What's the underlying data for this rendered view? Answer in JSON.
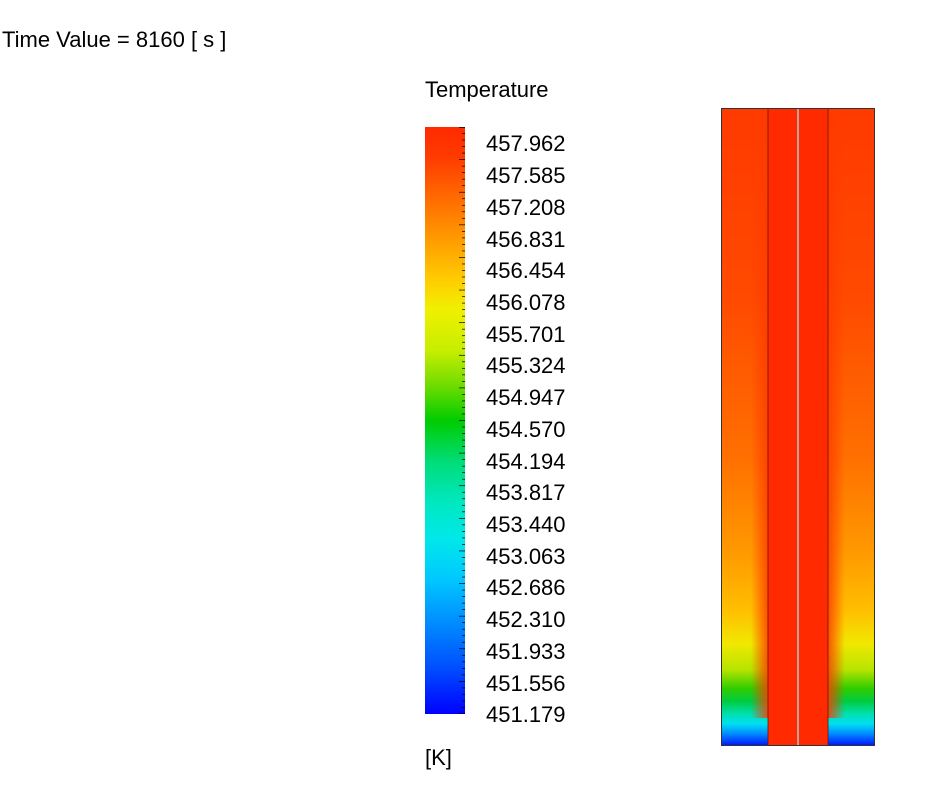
{
  "header": {
    "time_label": "Time Value = 8160 [ s ]"
  },
  "legend": {
    "title": "Temperature",
    "unit": "[K]",
    "values": [
      "457.962",
      "457.585",
      "457.208",
      "456.831",
      "456.454",
      "456.078",
      "455.701",
      "455.324",
      "454.947",
      "454.570",
      "454.194",
      "453.817",
      "453.440",
      "453.063",
      "452.686",
      "452.310",
      "451.933",
      "451.556",
      "451.179"
    ],
    "colormap": [
      "#ff0000",
      "#ff8000",
      "#ffff00",
      "#00ff00",
      "#00ffff",
      "#0000ff"
    ]
  },
  "contour": {
    "core_color": "#ff2a00",
    "wall_color": "#ff3a00",
    "divider_color": "#7a1a00",
    "bottom_colors": [
      "#ff8c00",
      "#ffd000",
      "#a8e000",
      "#00c800",
      "#00e8e0",
      "#0000ff"
    ]
  }
}
